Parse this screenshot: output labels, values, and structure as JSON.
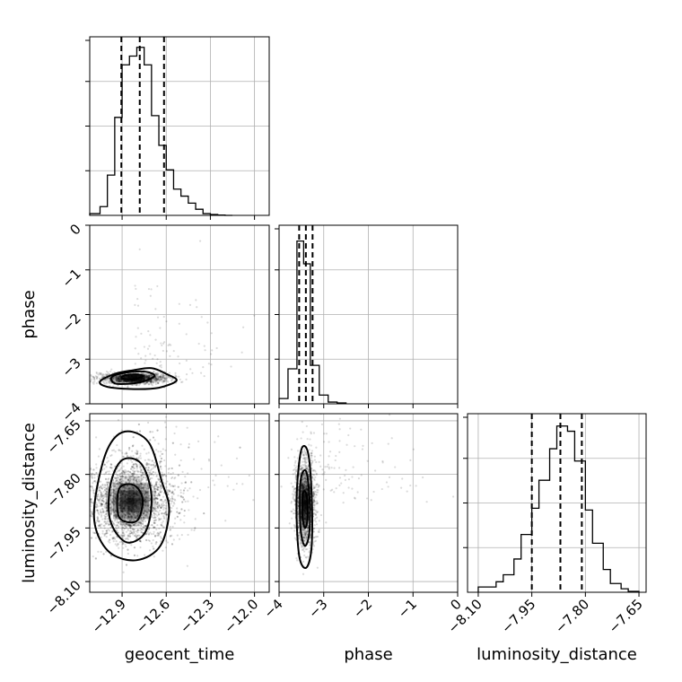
{
  "chart_data": {
    "type": "corner",
    "parameters": [
      "geocent_time",
      "phase",
      "luminosity_distance"
    ],
    "axis_labels": {
      "x": [
        "geocent_time",
        "phase",
        "luminosity_distance"
      ],
      "y": [
        "",
        "phase",
        "luminosity_distance"
      ]
    },
    "ranges": {
      "geocent_time": [
        -13.12,
        -11.9
      ],
      "phase": [
        -4,
        0
      ],
      "luminosity_distance": [
        -8.13,
        -7.63
      ]
    },
    "ticks": {
      "geocent_time": [
        -12.9,
        -12.6,
        -12.3,
        -12.0
      ],
      "phase": [
        -4,
        -3,
        -2,
        -1,
        0
      ],
      "luminosity_distance": [
        -8.1,
        -7.95,
        -7.8,
        -7.65
      ]
    },
    "tick_labels": {
      "geocent_time": [
        "−12.9",
        "−12.6",
        "−12.3",
        "−12.0"
      ],
      "phase": [
        "−4",
        "−3",
        "−2",
        "−1",
        "0"
      ],
      "luminosity_distance": [
        "−8.10",
        "−7.95",
        "−7.80",
        "−7.65"
      ]
    },
    "grid": true,
    "histograms": {
      "geocent_time": {
        "bin_edges": [
          -13.12,
          -13.05,
          -13.0,
          -12.95,
          -12.9,
          -12.85,
          -12.8,
          -12.75,
          -12.7,
          -12.65,
          -12.6,
          -12.55,
          -12.5,
          -12.45,
          -12.4,
          -12.35,
          -12.3,
          -12.25,
          -12.2,
          -12.15
        ],
        "counts": [
          0.01,
          0.05,
          0.23,
          0.56,
          0.86,
          0.91,
          0.96,
          0.86,
          0.57,
          0.4,
          0.26,
          0.15,
          0.11,
          0.07,
          0.035,
          0.01,
          0.005,
          0.002,
          0
        ],
        "quantiles": [
          -12.905,
          -12.78,
          -12.615
        ]
      },
      "phase": {
        "bin_edges": [
          -4.0,
          -3.8,
          -3.6,
          -3.45,
          -3.3,
          -3.1,
          -2.9,
          -2.7,
          -2.5
        ],
        "counts": [
          0.03,
          0.2,
          0.93,
          0.8,
          0.22,
          0.05,
          0.01,
          0.005
        ],
        "quantiles": [
          -3.55,
          -3.4,
          -3.25
        ]
      },
      "luminosity_distance": {
        "bin_edges": [
          -8.1,
          -8.05,
          -8.03,
          -8.0,
          -7.98,
          -7.95,
          -7.93,
          -7.9,
          -7.88,
          -7.85,
          -7.83,
          -7.8,
          -7.78,
          -7.75,
          -7.73,
          -7.7,
          -7.68,
          -7.65
        ],
        "counts": [
          0.03,
          0.06,
          0.1,
          0.19,
          0.33,
          0.48,
          0.64,
          0.82,
          0.95,
          0.92,
          0.75,
          0.47,
          0.28,
          0.13,
          0.05,
          0.02,
          0.005
        ],
        "quantiles": [
          -7.95,
          -7.87,
          -7.81
        ]
      }
    },
    "joint": {
      "phase_vs_geocent_time": {
        "center": [
          -12.82,
          -3.43
        ],
        "spread": [
          0.12,
          0.06
        ],
        "contours": [
          [
            [
              -12.88,
              -3.36
            ],
            [
              -12.8,
              -3.34
            ],
            [
              -12.76,
              -3.38
            ],
            [
              -12.82,
              -3.45
            ],
            [
              -12.9,
              -3.43
            ]
          ],
          [
            [
              -12.97,
              -3.4
            ],
            [
              -12.87,
              -3.3
            ],
            [
              -12.74,
              -3.28
            ],
            [
              -12.68,
              -3.38
            ],
            [
              -12.78,
              -3.52
            ],
            [
              -12.94,
              -3.55
            ]
          ],
          [
            [
              -13.05,
              -3.5
            ],
            [
              -12.95,
              -3.33
            ],
            [
              -12.83,
              -3.25
            ],
            [
              -12.7,
              -3.2
            ],
            [
              -12.6,
              -3.33
            ],
            [
              -12.53,
              -3.48
            ],
            [
              -12.65,
              -3.64
            ],
            [
              -12.82,
              -3.67
            ],
            [
              -13.0,
              -3.62
            ]
          ]
        ]
      },
      "luminosity_distance_vs_geocent_time": {
        "center": [
          -12.84,
          -7.875
        ],
        "spread": [
          0.15,
          0.06
        ],
        "contours": [
          [
            [
              -12.92,
              -7.84
            ],
            [
              -12.82,
              -7.83
            ],
            [
              -12.76,
              -7.87
            ],
            [
              -12.8,
              -7.93
            ],
            [
              -12.92,
              -7.92
            ]
          ],
          [
            [
              -12.98,
              -7.83
            ],
            [
              -12.9,
              -7.76
            ],
            [
              -12.77,
              -7.77
            ],
            [
              -12.7,
              -7.86
            ],
            [
              -12.74,
              -7.96
            ],
            [
              -12.87,
              -7.99
            ],
            [
              -12.98,
              -7.93
            ]
          ],
          [
            [
              -13.08,
              -7.86
            ],
            [
              -13.0,
              -7.73
            ],
            [
              -12.88,
              -7.68
            ],
            [
              -12.72,
              -7.71
            ],
            [
              -12.63,
              -7.82
            ],
            [
              -12.58,
              -7.9
            ],
            [
              -12.64,
              -8.0
            ],
            [
              -12.8,
              -8.04
            ],
            [
              -12.98,
              -8.02
            ],
            [
              -13.08,
              -7.95
            ]
          ]
        ]
      },
      "luminosity_distance_vs_phase": {
        "center": [
          -3.42,
          -7.88
        ],
        "spread": [
          0.11,
          0.06
        ],
        "contours": [
          [
            [
              -3.46,
              -7.85
            ],
            [
              -3.38,
              -7.86
            ],
            [
              -3.36,
              -7.92
            ],
            [
              -3.42,
              -7.95
            ],
            [
              -3.48,
              -7.91
            ]
          ],
          [
            [
              -3.52,
              -7.82
            ],
            [
              -3.4,
              -7.79
            ],
            [
              -3.32,
              -7.86
            ],
            [
              -3.32,
              -7.96
            ],
            [
              -3.42,
              -8.0
            ],
            [
              -3.52,
              -7.95
            ]
          ],
          [
            [
              -3.6,
              -7.84
            ],
            [
              -3.5,
              -7.73
            ],
            [
              -3.35,
              -7.74
            ],
            [
              -3.27,
              -7.86
            ],
            [
              -3.27,
              -8.0
            ],
            [
              -3.38,
              -8.06
            ],
            [
              -3.53,
              -8.04
            ],
            [
              -3.6,
              -7.95
            ]
          ]
        ]
      }
    }
  }
}
